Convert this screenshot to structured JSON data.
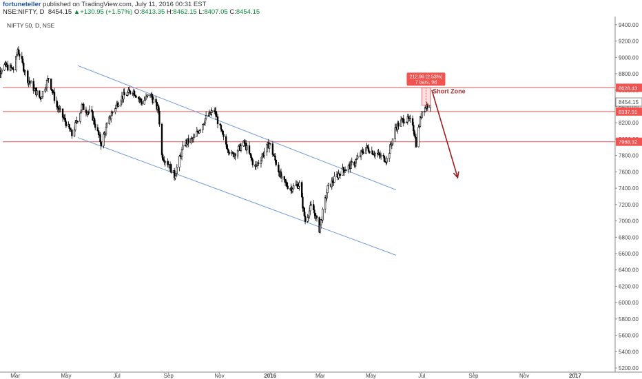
{
  "header": {
    "author": "fortuneteller",
    "published": "published on TradingView.com, July 11, 2016 00:31 EST",
    "symbol": "NSE:NIFTY, D",
    "price": "8454.15",
    "change": "+130.95 (+1.57%)",
    "o_label": "O:",
    "o_value": "8413.35",
    "h_label": "H:",
    "h_value": "8462.15",
    "l_label": "L:",
    "l_value": "8407.05",
    "c_label": "C:",
    "c_value": "8454.15"
  },
  "chart_data": {
    "type": "candlestick",
    "symbol_label": "NIFTY 50, D, NSE",
    "y_ticks": [
      5200,
      5400,
      5600,
      5800,
      6000,
      6200,
      6400,
      6600,
      6800,
      7000,
      7200,
      7400,
      7600,
      7800,
      8000,
      8200,
      8400,
      8600,
      8800,
      9000,
      9200,
      9400
    ],
    "x_ticks": [
      "Mar",
      "May",
      "Jul",
      "Sep",
      "Nov",
      "2016",
      "Mar",
      "May",
      "Jul",
      "Sep",
      "Nov",
      "2017"
    ],
    "x_tick_dates": [
      "2015-03",
      "2015-05",
      "2015-07",
      "2015-09",
      "2015-11",
      "2016-01",
      "2016-03",
      "2016-05",
      "2016-07",
      "2016-09",
      "2016-11",
      "2017-01"
    ],
    "horizontal_levels": [
      {
        "value": 8628.43,
        "label": "8628.43",
        "color": "#f05350"
      },
      {
        "value": 8337.91,
        "label": "8337.91",
        "color": "#f05350"
      },
      {
        "value": 7968.32,
        "label": "7968.32",
        "color": "#f05350"
      }
    ],
    "last_price": {
      "value": 8454.15,
      "label": "8454.15"
    },
    "channel": {
      "upper": [
        {
          "date": "2015-05-15",
          "price": 8900
        },
        {
          "date": "2016-05-31",
          "price": 7380
        }
      ],
      "lower": [
        {
          "date": "2015-05-15",
          "price": 8020
        },
        {
          "date": "2016-05-31",
          "price": 6580
        }
      ]
    },
    "measure": {
      "line1": "212.96 (2.53%)",
      "line2": "7 bars, 9d",
      "from": 8415,
      "to": 8628,
      "date_from": "2016-07-01",
      "date_to": "2016-07-11"
    },
    "annotation": {
      "text": "Short Zone",
      "date": "2016-07-14",
      "price": 8560
    },
    "arrow": {
      "from": {
        "date": "2016-07-13",
        "price": 8600
      },
      "to": {
        "date": "2016-08-13",
        "price": 7530
      }
    },
    "price_path": [
      [
        "2015-02-01",
        8700
      ],
      [
        "2015-02-15",
        8900
      ],
      [
        "2015-02-28",
        8850
      ],
      [
        "2015-03-04",
        9100
      ],
      [
        "2015-03-15",
        8750
      ],
      [
        "2015-03-31",
        8500
      ],
      [
        "2015-04-10",
        8750
      ],
      [
        "2015-04-20",
        8400
      ],
      [
        "2015-05-01",
        8200
      ],
      [
        "2015-05-08",
        8050
      ],
      [
        "2015-05-20",
        8400
      ],
      [
        "2015-06-01",
        8300
      ],
      [
        "2015-06-12",
        7950
      ],
      [
        "2015-06-24",
        8300
      ],
      [
        "2015-07-05",
        8500
      ],
      [
        "2015-07-20",
        8600
      ],
      [
        "2015-07-31",
        8450
      ],
      [
        "2015-08-10",
        8550
      ],
      [
        "2015-08-20",
        8350
      ],
      [
        "2015-08-24",
        7800
      ],
      [
        "2015-09-01",
        7700
      ],
      [
        "2015-09-08",
        7550
      ],
      [
        "2015-09-20",
        7950
      ],
      [
        "2015-10-01",
        8000
      ],
      [
        "2015-10-15",
        8250
      ],
      [
        "2015-10-26",
        8350
      ],
      [
        "2015-11-06",
        8000
      ],
      [
        "2015-11-16",
        7800
      ],
      [
        "2015-12-01",
        7950
      ],
      [
        "2015-12-14",
        7650
      ],
      [
        "2015-12-31",
        7950
      ],
      [
        "2016-01-15",
        7500
      ],
      [
        "2016-01-25",
        7400
      ],
      [
        "2016-02-05",
        7450
      ],
      [
        "2016-02-12",
        7000
      ],
      [
        "2016-02-20",
        7200
      ],
      [
        "2016-02-29",
        6900
      ],
      [
        "2016-03-10",
        7400
      ],
      [
        "2016-03-25",
        7600
      ],
      [
        "2016-04-10",
        7700
      ],
      [
        "2016-04-25",
        7900
      ],
      [
        "2016-05-10",
        7800
      ],
      [
        "2016-05-20",
        7750
      ],
      [
        "2016-05-31",
        8150
      ],
      [
        "2016-06-10",
        8250
      ],
      [
        "2016-06-20",
        8200
      ],
      [
        "2016-06-24",
        7950
      ],
      [
        "2016-07-01",
        8350
      ],
      [
        "2016-07-08",
        8420
      ],
      [
        "2016-07-11",
        8454
      ]
    ]
  }
}
